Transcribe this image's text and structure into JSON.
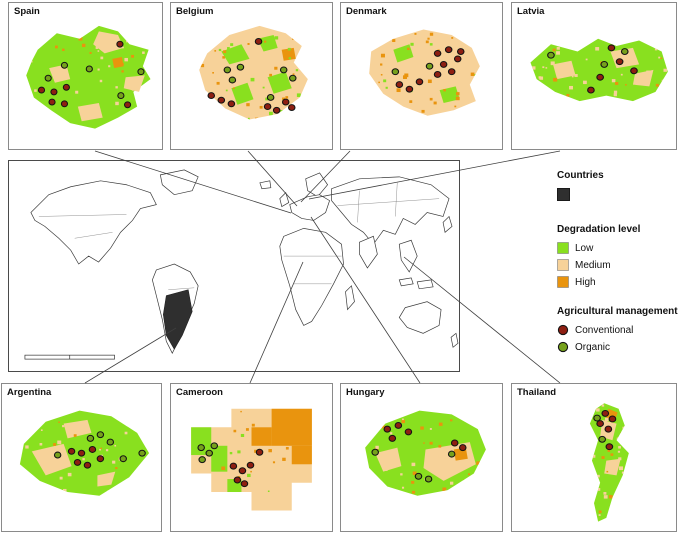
{
  "figure": {
    "panels_top": [
      {
        "label": "Spain"
      },
      {
        "label": "Belgium"
      },
      {
        "label": "Denmark"
      },
      {
        "label": "Latvia"
      }
    ],
    "panels_bottom": [
      {
        "label": "Argentina"
      },
      {
        "label": "Cameroon"
      },
      {
        "label": "Hungary"
      },
      {
        "label": "Thailand"
      }
    ]
  },
  "legend": {
    "countries": {
      "title": "Countries",
      "swatch_color": "#2f2f2f"
    },
    "degradation": {
      "title": "Degradation level",
      "items": [
        {
          "label": "Low",
          "color": "#89e01f"
        },
        {
          "label": "Medium",
          "color": "#f7d299"
        },
        {
          "label": "High",
          "color": "#e9940e"
        }
      ]
    },
    "management": {
      "title": "Agricultural management",
      "items": [
        {
          "label": "Conventional",
          "color": "#8e1f12"
        },
        {
          "label": "Organic",
          "color": "#76a11c"
        }
      ]
    }
  }
}
